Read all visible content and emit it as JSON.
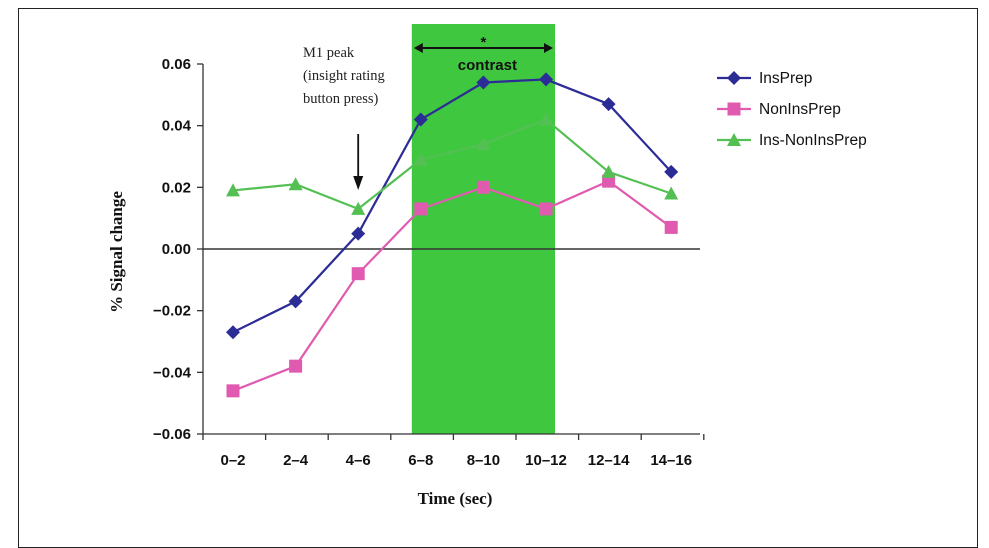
{
  "chart_data": {
    "type": "line",
    "title": "",
    "xlabel": "Time (sec)",
    "ylabel": "% Signal change",
    "categories": [
      "0–2",
      "2–4",
      "4–6",
      "6–8",
      "8–10",
      "10–12",
      "12–14",
      "14–16"
    ],
    "ylim": [
      -0.06,
      0.06
    ],
    "yticks": [
      "0.06",
      "0.04",
      "0.02",
      "0.00",
      "−0.02",
      "−0.04",
      "−0.06"
    ],
    "ytick_values": [
      0.06,
      0.04,
      0.02,
      0.0,
      -0.02,
      -0.04,
      -0.06
    ],
    "grid": false,
    "legend_position": "right",
    "series": [
      {
        "name": "InsPrep",
        "color": "#2c2c96",
        "marker": "diamond",
        "values": [
          -0.027,
          -0.017,
          0.005,
          0.042,
          0.054,
          0.055,
          0.047,
          0.025
        ]
      },
      {
        "name": "NonInsPrep",
        "color": "#e05bb0",
        "marker": "square",
        "values": [
          -0.046,
          -0.038,
          -0.008,
          0.013,
          0.02,
          0.013,
          0.022,
          0.007
        ]
      },
      {
        "name": "Ins-NonInsPrep",
        "color": "#54c054",
        "marker": "triangle",
        "values": [
          0.019,
          0.021,
          0.013,
          0.029,
          0.034,
          0.042,
          0.025,
          0.018
        ]
      }
    ],
    "highlight": {
      "from_category": "6–8",
      "to_category": "10–12",
      "color": "#3fc83f",
      "label": "contrast",
      "marker": "*"
    },
    "annotation": {
      "lines": [
        "M1 peak",
        "(insight rating",
        "button press)"
      ],
      "arrow_category": "4–6"
    }
  }
}
